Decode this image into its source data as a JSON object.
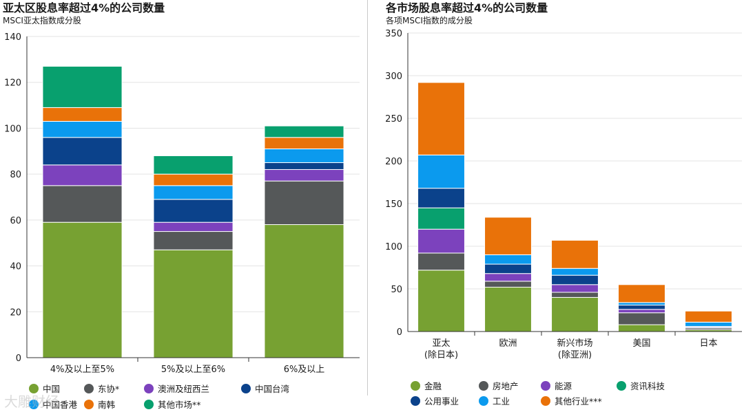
{
  "colors": {
    "china": "#77a132",
    "asean": "#555859",
    "aunz": "#7c42bd",
    "taiwan": "#0b428b",
    "hongkong": "#0b9aee",
    "korea": "#e97209",
    "other": "#08a06e"
  },
  "left": {
    "title": "亚太区股息率超过4%的公司数量",
    "subtitle": "MSCI亚太指数成分股",
    "legend": [
      {
        "label": "中国",
        "color_key": "china"
      },
      {
        "label": "东协*",
        "color_key": "asean"
      },
      {
        "label": "澳洲及纽西兰",
        "color_key": "aunz"
      },
      {
        "label": "中国台湾",
        "color_key": "taiwan"
      },
      {
        "label": "中国香港",
        "color_key": "hongkong"
      },
      {
        "label": "南韩",
        "color_key": "korea"
      },
      {
        "label": "其他市场**",
        "color_key": "other"
      }
    ]
  },
  "right": {
    "title": "各市场股息率超过4%的公司数量",
    "subtitle": "各项MSCI指数的成分股",
    "legend": [
      {
        "label": "金融",
        "color_key": "china"
      },
      {
        "label": "房地产",
        "color_key": "asean"
      },
      {
        "label": "能源",
        "color_key": "aunz"
      },
      {
        "label": "资讯科技",
        "color_key": "other"
      },
      {
        "label": "公用事业",
        "color_key": "taiwan"
      },
      {
        "label": "工业",
        "color_key": "hongkong"
      },
      {
        "label": "其他行业***",
        "color_key": "korea"
      }
    ]
  },
  "watermark": "大雕财经",
  "chart_data": [
    {
      "type": "bar",
      "stacked": true,
      "title": "亚太区股息率超过4%的公司数量",
      "subtitle": "MSCI亚太指数成分股",
      "categories": [
        "4%及以上至5%",
        "5%及以上至6%",
        "6%及以上"
      ],
      "ylim": [
        0,
        140
      ],
      "yticks": [
        0,
        20,
        40,
        60,
        80,
        100,
        120,
        140
      ],
      "grid": true,
      "series": [
        {
          "name": "中国",
          "color_key": "china",
          "values": [
            59,
            47,
            58
          ]
        },
        {
          "name": "东协*",
          "color_key": "asean",
          "values": [
            16,
            8,
            19
          ]
        },
        {
          "name": "澳洲及纽西兰",
          "color_key": "aunz",
          "values": [
            9,
            4,
            5
          ]
        },
        {
          "name": "中国台湾",
          "color_key": "taiwan",
          "values": [
            12,
            10,
            3
          ]
        },
        {
          "name": "中国香港",
          "color_key": "hongkong",
          "values": [
            7,
            6,
            6
          ]
        },
        {
          "name": "南韩",
          "color_key": "korea",
          "values": [
            6,
            5,
            5
          ]
        },
        {
          "name": "其他市场**",
          "color_key": "other",
          "values": [
            18,
            8,
            5
          ]
        }
      ]
    },
    {
      "type": "bar",
      "stacked": true,
      "title": "各市场股息率超过4%的公司数量",
      "subtitle": "各项MSCI指数的成分股",
      "categories": [
        [
          "亚太",
          "(除日本)"
        ],
        [
          "欧洲"
        ],
        [
          "新兴市场",
          "(除亚洲)"
        ],
        [
          "美国"
        ],
        [
          "日本"
        ]
      ],
      "ylim": [
        0,
        350
      ],
      "yticks": [
        0,
        50,
        100,
        150,
        200,
        250,
        300,
        350
      ],
      "grid": true,
      "series": [
        {
          "name": "金融",
          "color_key": "china",
          "values": [
            72,
            52,
            40,
            8,
            2
          ]
        },
        {
          "name": "房地产",
          "color_key": "asean",
          "values": [
            20,
            7,
            6,
            14,
            2
          ]
        },
        {
          "name": "能源",
          "color_key": "aunz",
          "values": [
            28,
            9,
            9,
            4,
            1
          ]
        },
        {
          "name": "资讯科技",
          "color_key": "other",
          "values": [
            25,
            0,
            0,
            0,
            0
          ]
        },
        {
          "name": "公用事业",
          "color_key": "taiwan",
          "values": [
            23,
            11,
            11,
            5,
            1
          ]
        },
        {
          "name": "工业",
          "color_key": "hongkong",
          "values": [
            39,
            11,
            8,
            3,
            5
          ]
        },
        {
          "name": "其他行业***",
          "color_key": "korea",
          "values": [
            85,
            44,
            33,
            21,
            13
          ]
        }
      ]
    }
  ]
}
